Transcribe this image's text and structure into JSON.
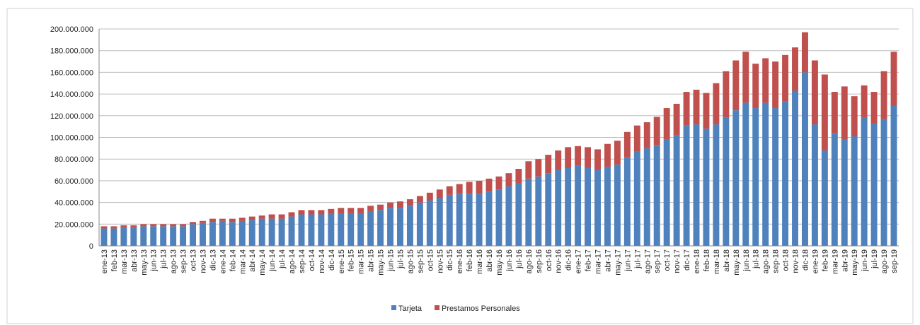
{
  "chart_data": {
    "type": "stacked-bar",
    "categories": [
      "ene-13",
      "feb-13",
      "mar-13",
      "abr-13",
      "may-13",
      "jun-13",
      "jul-13",
      "ago-13",
      "sep-13",
      "oct-13",
      "nov-13",
      "dic-13",
      "ene-14",
      "feb-14",
      "mar-14",
      "abr-14",
      "may-14",
      "jun-14",
      "jul-14",
      "ago-14",
      "sep-14",
      "oct-14",
      "nov-14",
      "dic-14",
      "ene-15",
      "feb-15",
      "mar-15",
      "abr-15",
      "may-15",
      "jun-15",
      "jul-15",
      "ago-15",
      "sep-15",
      "oct-15",
      "nov-15",
      "dic-15",
      "ene-16",
      "feb-16",
      "mar-16",
      "abr-16",
      "may-16",
      "jun-16",
      "jul-16",
      "ago-16",
      "sep-16",
      "oct-16",
      "nov-16",
      "dic-16",
      "ene-17",
      "feb-17",
      "mar-17",
      "abr-17",
      "may-17",
      "jun-17",
      "jul-17",
      "ago-17",
      "sep-17",
      "oct-17",
      "nov-17",
      "dic-17",
      "ene-18",
      "feb-18",
      "mar-18",
      "abr-18",
      "may-18",
      "jun-18",
      "jul-18",
      "ago-18",
      "sep-18",
      "oct-18",
      "nov-18",
      "dic-18",
      "ene-19",
      "feb-19",
      "mar-19",
      "abr-19",
      "may-19",
      "jun-19",
      "jul-19",
      "ago-19",
      "sep-19"
    ],
    "series": [
      {
        "name": "Tarjeta",
        "color": "#4f81bd",
        "values": [
          16000000,
          16000000,
          17000000,
          17000000,
          18000000,
          18000000,
          18000000,
          18000000,
          18000000,
          20000000,
          21000000,
          22000000,
          23000000,
          22000000,
          23000000,
          24000000,
          25000000,
          25000000,
          25000000,
          27000000,
          29000000,
          29000000,
          29000000,
          30000000,
          30000000,
          30000000,
          30000000,
          32000000,
          33000000,
          35000000,
          35000000,
          37000000,
          40000000,
          42000000,
          44000000,
          47000000,
          48000000,
          48000000,
          48000000,
          50000000,
          52000000,
          55000000,
          58000000,
          62000000,
          64000000,
          67000000,
          70000000,
          72000000,
          74000000,
          72000000,
          70000000,
          73000000,
          75000000,
          82000000,
          87000000,
          90000000,
          93000000,
          98000000,
          102000000,
          111000000,
          112000000,
          108000000,
          112000000,
          118000000,
          125000000,
          132000000,
          127000000,
          132000000,
          127000000,
          133000000,
          143000000,
          160000000,
          112000000,
          88000000,
          104000000,
          98000000,
          101000000,
          118000000,
          113000000,
          117000000,
          129000000
        ]
      },
      {
        "name": "Prestamos Personales",
        "color": "#c0504d",
        "values": [
          2000000,
          2000000,
          2000000,
          2000000,
          2000000,
          2000000,
          2000000,
          2000000,
          2000000,
          2000000,
          2000000,
          3000000,
          2000000,
          3000000,
          3000000,
          3000000,
          3000000,
          4000000,
          4000000,
          4000000,
          4000000,
          4000000,
          4000000,
          4000000,
          5000000,
          5000000,
          5000000,
          5000000,
          5000000,
          5000000,
          6000000,
          6000000,
          6000000,
          7000000,
          8000000,
          8000000,
          9000000,
          11000000,
          12000000,
          12000000,
          12000000,
          12000000,
          13000000,
          16000000,
          16000000,
          17000000,
          18000000,
          19000000,
          18000000,
          19000000,
          19000000,
          21000000,
          22000000,
          23000000,
          24000000,
          24000000,
          26000000,
          29000000,
          29000000,
          31000000,
          32000000,
          33000000,
          38000000,
          43000000,
          46000000,
          47000000,
          41000000,
          41000000,
          43000000,
          43000000,
          40000000,
          37000000,
          59000000,
          70000000,
          38000000,
          49000000,
          37000000,
          30000000,
          29000000,
          44000000,
          50000000
        ]
      }
    ],
    "ylim": [
      0,
      200000000
    ],
    "yticks": [
      0,
      {
        "value": 20000000,
        "label": "20.000.000"
      },
      {
        "value": 40000000,
        "label": "40.000.000"
      },
      {
        "value": 60000000,
        "label": "60.000.000"
      },
      {
        "value": 80000000,
        "label": "80.000.000"
      },
      {
        "value": 100000000,
        "label": "100.000.000"
      },
      {
        "value": 120000000,
        "label": "120.000.000"
      },
      {
        "value": 140000000,
        "label": "140.000.000"
      },
      {
        "value": 160000000,
        "label": "160.000.000"
      },
      {
        "value": 180000000,
        "label": "180.000.000"
      },
      {
        "value": 200000000,
        "label": "200.000.000"
      }
    ],
    "grid": true,
    "legend": "bottom"
  }
}
